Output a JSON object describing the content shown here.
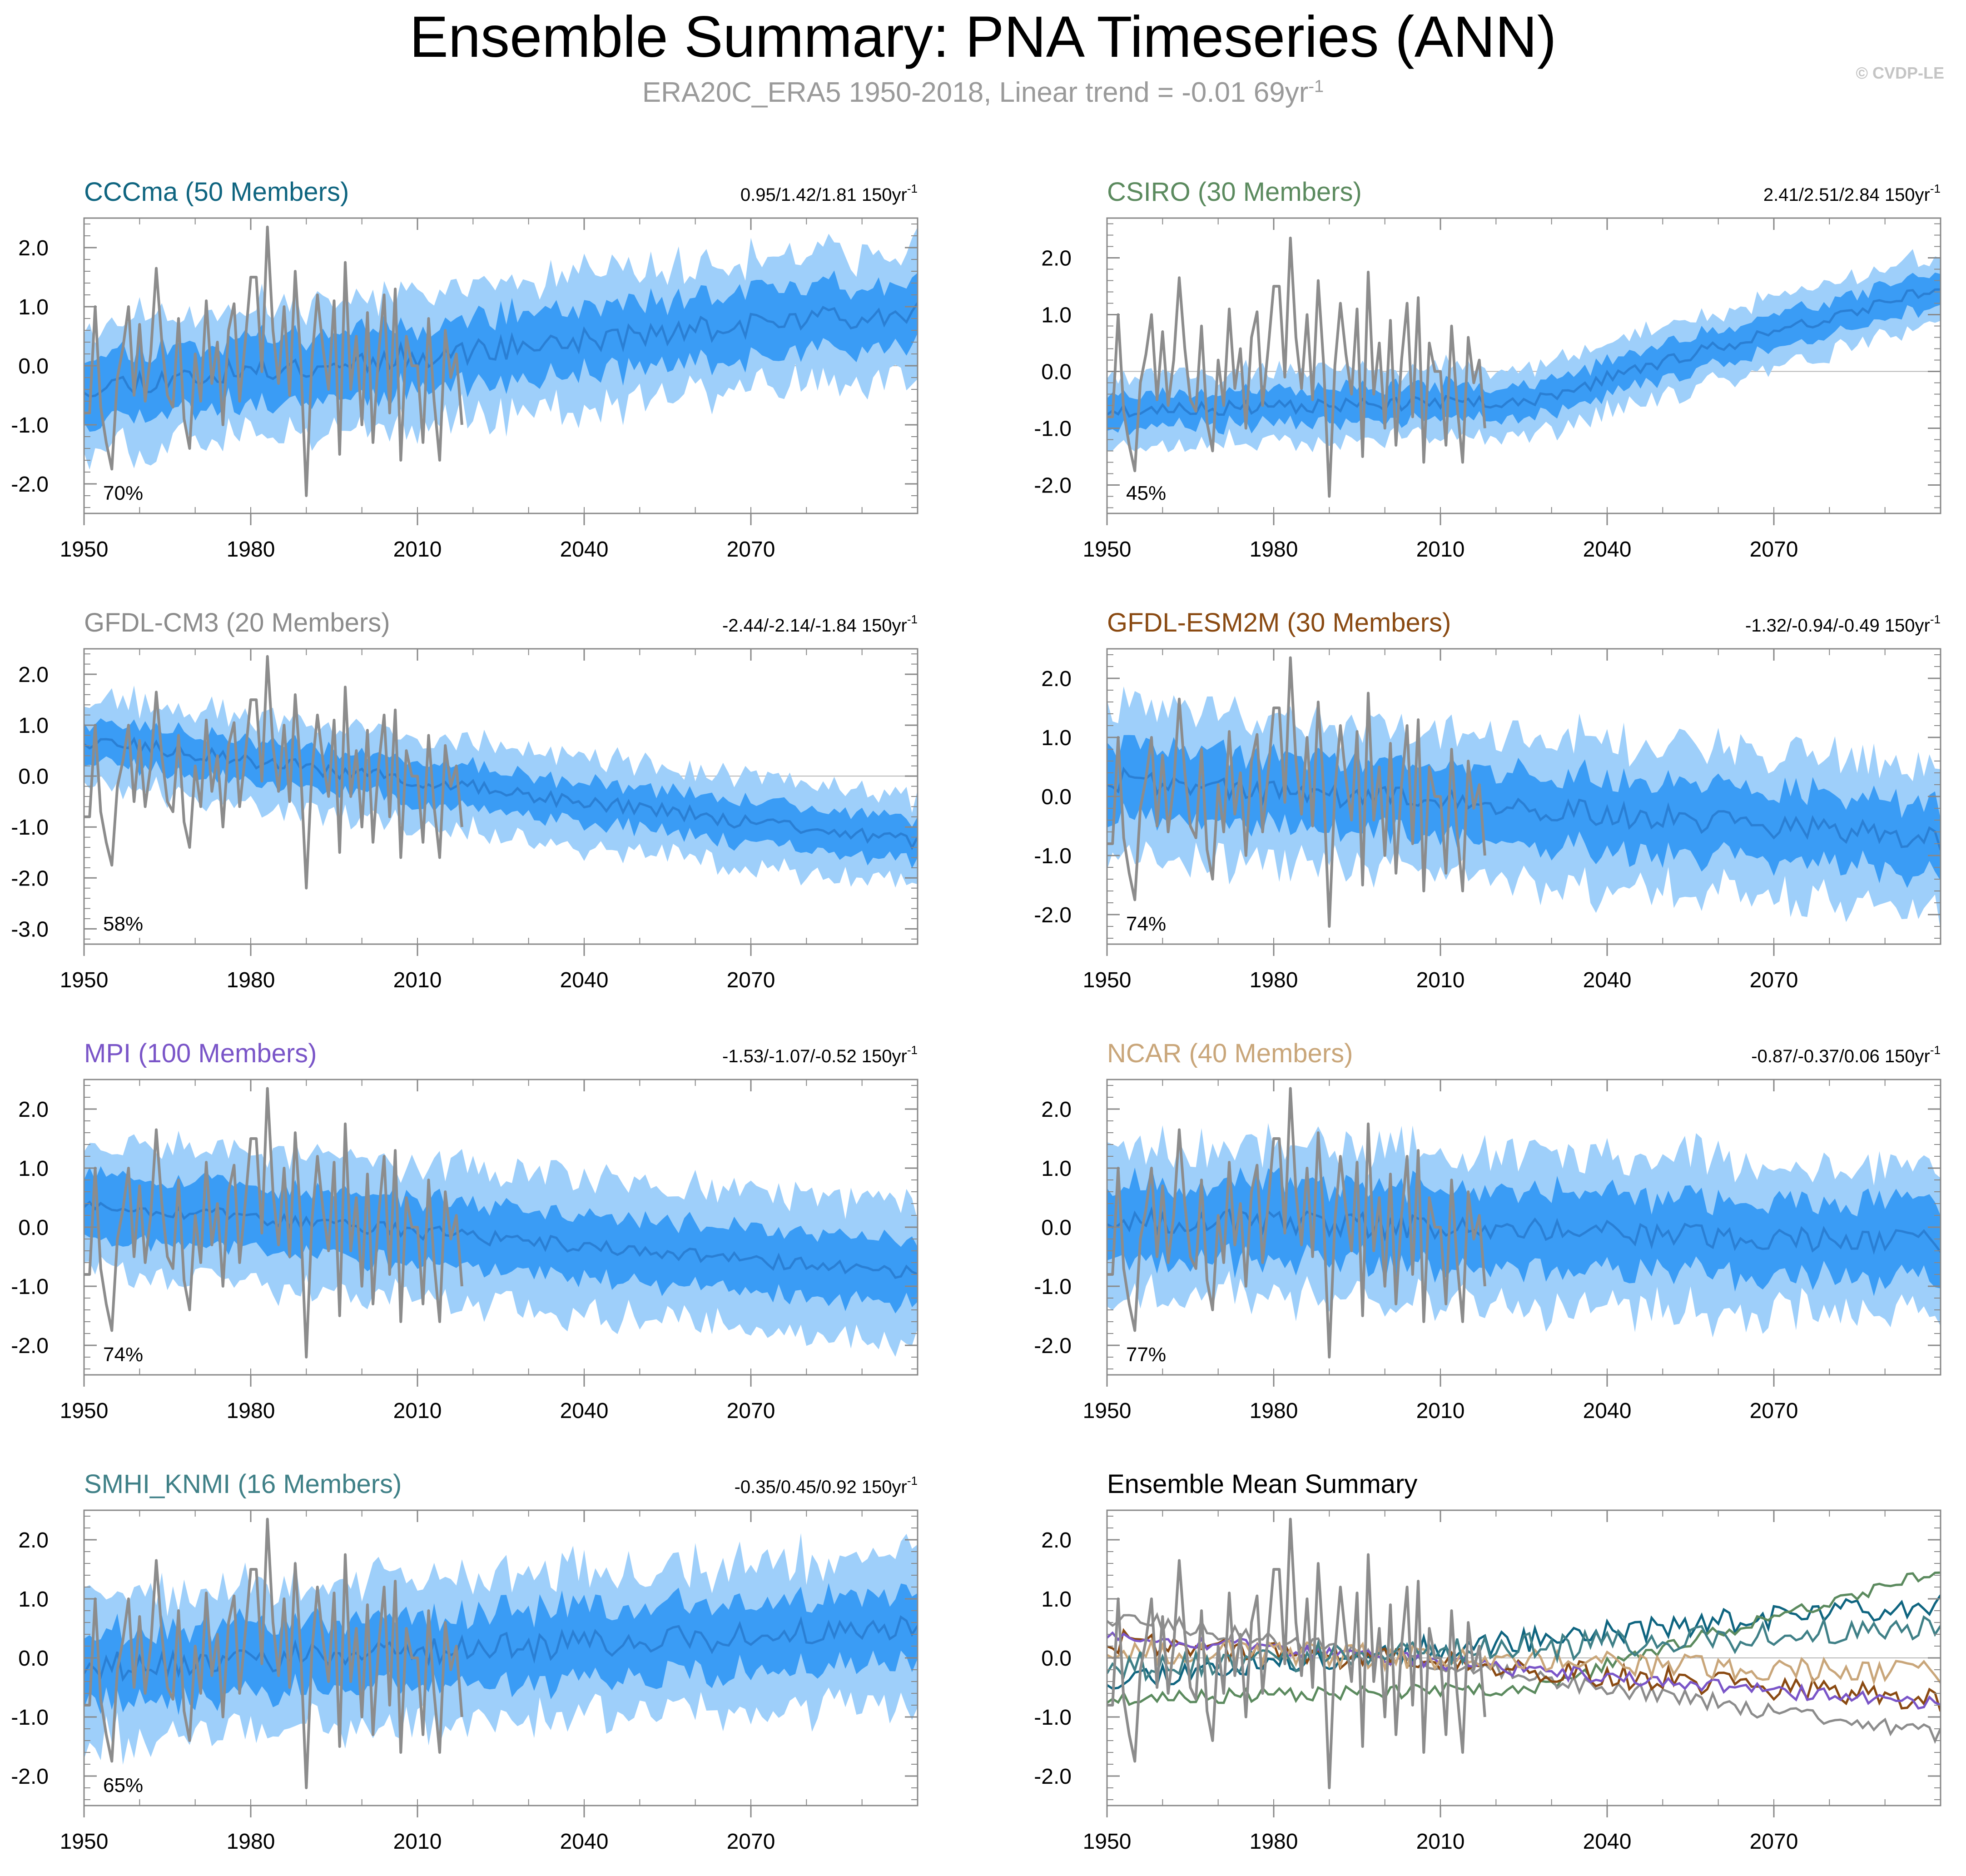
{
  "title": "Ensemble Summary: PNA Timeseries (ANN)",
  "subtitle": {
    "prefix": "ERA20C_ERA5 1950-2018, Linear trend = -0.01 69yr",
    "exponent": "-1"
  },
  "copyright": "© CVDP-LE",
  "colors": {
    "outer_band": "#9ecffa",
    "inner_band": "#3a9cf5",
    "ens_mean": "#2a7fd4",
    "observations": "#8c8c8c",
    "zero_line": "#b4b4b4",
    "axis": "#888888"
  },
  "chart_data": [
    {
      "type": "area",
      "panel": "CCCma",
      "title": "CCCma (50 Members)",
      "title_color": "#0f6580",
      "trend_label": "0.95/1.42/1.81 150yr",
      "trend_exp": "-1",
      "percent": "70%",
      "x_range": [
        1950,
        2100
      ],
      "ylim": [
        -2.5,
        2.5
      ],
      "yticks": [
        -2.0,
        -1.0,
        0.0,
        1.0,
        2.0
      ],
      "ytick_labels": [
        "-2.0",
        "-1.0",
        "0.0",
        "1.0",
        "2.0"
      ],
      "xticks": [
        1950,
        1980,
        2010,
        2040,
        2070
      ],
      "xtick_labels": [
        "1950",
        "1980",
        "2010",
        "2040",
        "2070"
      ],
      "mean_start": -0.35,
      "mean_end": 0.95,
      "inner_half": 0.55,
      "outer_half": 1.05,
      "variability": 0.35,
      "seed": 11
    },
    {
      "type": "area",
      "panel": "CSIRO",
      "title": "CSIRO (30 Members)",
      "title_color": "#5b8a5e",
      "trend_label": "2.41/2.51/2.84 150yr",
      "trend_exp": "-1",
      "percent": "45%",
      "x_range": [
        1950,
        2100
      ],
      "ylim": [
        -2.5,
        2.7
      ],
      "yticks": [
        -2.0,
        -1.0,
        0.0,
        1.0,
        2.0
      ],
      "ytick_labels": [
        "-2.0",
        "-1.0",
        "0.0",
        "1.0",
        "2.0"
      ],
      "xticks": [
        1950,
        1980,
        2010,
        2040,
        2070
      ],
      "xtick_labels": [
        "1950",
        "1980",
        "2010",
        "2040",
        "2070"
      ],
      "mean_knots": [
        [
          1950,
          -0.7
        ],
        [
          2030,
          -0.5
        ],
        [
          2040,
          -0.1
        ],
        [
          2070,
          0.7
        ],
        [
          2100,
          1.5
        ]
      ],
      "inner_half": 0.3,
      "outer_half": 0.6,
      "variability": 0.2,
      "seed": 23
    },
    {
      "type": "area",
      "panel": "GFDL-CM3",
      "title": "GFDL-CM3 (20 Members)",
      "title_color": "#8c8c8c",
      "trend_label": "-2.44/-2.14/-1.84 150yr",
      "trend_exp": "-1",
      "percent": "58%",
      "x_range": [
        1950,
        2100
      ],
      "ylim": [
        -3.3,
        2.5
      ],
      "yticks": [
        -3.0,
        -2.0,
        -1.0,
        0.0,
        1.0,
        2.0
      ],
      "ytick_labels": [
        "-3.0",
        "-2.0",
        "-1.0",
        "0.0",
        "1.0",
        "2.0"
      ],
      "xticks": [
        1950,
        1980,
        2010,
        2040,
        2070
      ],
      "xtick_labels": [
        "1950",
        "1980",
        "2010",
        "2040",
        "2070"
      ],
      "mean_start": 0.7,
      "mean_end": -1.3,
      "inner_half": 0.4,
      "outer_half": 0.85,
      "variability": 0.25,
      "seed": 37
    },
    {
      "type": "area",
      "panel": "GFDL-ESM2M",
      "title": "GFDL-ESM2M (30 Members)",
      "title_color": "#8a4a12",
      "trend_label": "-1.32/-0.94/-0.49 150yr",
      "trend_exp": "-1",
      "percent": "74%",
      "x_range": [
        1950,
        2100
      ],
      "ylim": [
        -2.5,
        2.5
      ],
      "yticks": [
        -2.0,
        -1.0,
        0.0,
        1.0,
        2.0
      ],
      "ytick_labels": [
        "-2.0",
        "-1.0",
        "0.0",
        "1.0",
        "2.0"
      ],
      "xticks": [
        1950,
        1980,
        2010,
        2040,
        2070
      ],
      "xtick_labels": [
        "1950",
        "1980",
        "2010",
        "2040",
        "2070"
      ],
      "mean_start": 0.3,
      "mean_end": -0.7,
      "inner_half": 0.6,
      "outer_half": 1.2,
      "variability": 0.35,
      "seed": 41
    },
    {
      "type": "area",
      "panel": "MPI",
      "title": "MPI (100 Members)",
      "title_color": "#7a55c8",
      "trend_label": "-1.53/-1.07/-0.52 150yr",
      "trend_exp": "-1",
      "percent": "74%",
      "x_range": [
        1950,
        2100
      ],
      "ylim": [
        -2.5,
        2.5
      ],
      "yticks": [
        -2.0,
        -1.0,
        0.0,
        1.0,
        2.0
      ],
      "ytick_labels": [
        "-2.0",
        "-1.0",
        "0.0",
        "1.0",
        "2.0"
      ],
      "xticks": [
        1950,
        1980,
        2010,
        2040,
        2070
      ],
      "xtick_labels": [
        "1950",
        "1980",
        "2010",
        "2040",
        "2070"
      ],
      "mean_start": 0.4,
      "mean_end": -0.8,
      "inner_half": 0.55,
      "outer_half": 1.1,
      "variability": 0.2,
      "seed": 53
    },
    {
      "type": "area",
      "panel": "NCAR",
      "title": "NCAR (40 Members)",
      "title_color": "#c9a67a",
      "trend_label": "-0.87/-0.37/0.06 150yr",
      "trend_exp": "-1",
      "percent": "77%",
      "x_range": [
        1950,
        2100
      ],
      "ylim": [
        -2.5,
        2.5
      ],
      "yticks": [
        -2.0,
        -1.0,
        0.0,
        1.0,
        2.0
      ],
      "ytick_labels": [
        "-2.0",
        "-1.0",
        "0.0",
        "1.0",
        "2.0"
      ],
      "xticks": [
        1950,
        1980,
        2010,
        2040,
        2070
      ],
      "xtick_labels": [
        "1950",
        "1980",
        "2010",
        "2040",
        "2070"
      ],
      "mean_start": 0.15,
      "mean_end": -0.25,
      "inner_half": 0.65,
      "outer_half": 1.25,
      "variability": 0.35,
      "seed": 67
    },
    {
      "type": "area",
      "panel": "SMHI_KNMI",
      "title": "SMHI_KNMI (16 Members)",
      "title_color": "#3f8087",
      "trend_label": "-0.35/0.45/0.92 150yr",
      "trend_exp": "-1",
      "percent": "65%",
      "x_range": [
        1950,
        2100
      ],
      "ylim": [
        -2.5,
        2.5
      ],
      "yticks": [
        -2.0,
        -1.0,
        0.0,
        1.0,
        2.0
      ],
      "ytick_labels": [
        "-2.0",
        "-1.0",
        "0.0",
        "1.0",
        "2.0"
      ],
      "xticks": [
        1950,
        1980,
        2010,
        2040,
        2070
      ],
      "xtick_labels": [
        "1950",
        "1980",
        "2010",
        "2040",
        "2070"
      ],
      "mean_start": -0.15,
      "mean_end": 0.5,
      "inner_half": 0.6,
      "outer_half": 1.2,
      "variability": 0.4,
      "seed": 79
    },
    {
      "type": "line",
      "panel": "Summary",
      "title": "Ensemble Mean Summary",
      "title_color": "#000000",
      "x_range": [
        1950,
        2100
      ],
      "ylim": [
        -2.5,
        2.5
      ],
      "yticks": [
        -2.0,
        -1.0,
        0.0,
        1.0,
        2.0
      ],
      "ytick_labels": [
        "-2.0",
        "-1.0",
        "0.0",
        "1.0",
        "2.0"
      ],
      "xticks": [
        1950,
        1980,
        2010,
        2040,
        2070
      ],
      "xtick_labels": [
        "1950",
        "1980",
        "2010",
        "2040",
        "2070"
      ],
      "series": [
        {
          "name": "CCCma",
          "color": "#0f6580",
          "source": "CCCma"
        },
        {
          "name": "CSIRO",
          "color": "#5b8a5e",
          "source": "CSIRO"
        },
        {
          "name": "GFDL-CM3",
          "color": "#8c8c8c",
          "source": "GFDL-CM3"
        },
        {
          "name": "GFDL-ESM2M",
          "color": "#8a4a12",
          "source": "GFDL-ESM2M"
        },
        {
          "name": "MPI",
          "color": "#7a55c8",
          "source": "MPI"
        },
        {
          "name": "NCAR",
          "color": "#c9a67a",
          "source": "NCAR"
        },
        {
          "name": "SMHI_KNMI",
          "color": "#3f8087",
          "source": "SMHI_KNMI"
        }
      ]
    }
  ],
  "observations": {
    "name": "ERA20C_ERA5",
    "years": [
      1950,
      2018
    ],
    "values": [
      -0.8,
      -0.8,
      1.0,
      -0.7,
      -1.3,
      -1.75,
      -0.2,
      0.3,
      1.0,
      -0.5,
      0.7,
      -0.6,
      0.2,
      1.65,
      0.4,
      -0.5,
      -0.7,
      0.8,
      -0.9,
      -1.4,
      0.2,
      -0.6,
      1.1,
      -0.3,
      0.4,
      -1.0,
      0.6,
      1.05,
      -0.6,
      0.4,
      1.5,
      1.5,
      -0.1,
      2.35,
      0.6,
      -0.3,
      1.0,
      -0.5,
      1.6,
      0.1,
      -2.2,
      0.1,
      1.2,
      0.3,
      -0.4,
      1.1,
      -1.5,
      1.75,
      -0.4,
      0.5,
      -1.0,
      0.9,
      -1.3,
      0.2,
      1.2,
      -0.8,
      1.3,
      -1.6,
      0.5,
      0.0,
      0.0,
      -1.3,
      0.8,
      -0.6,
      -1.6,
      0.6,
      -0.2,
      0.2,
      -1.0
    ]
  }
}
